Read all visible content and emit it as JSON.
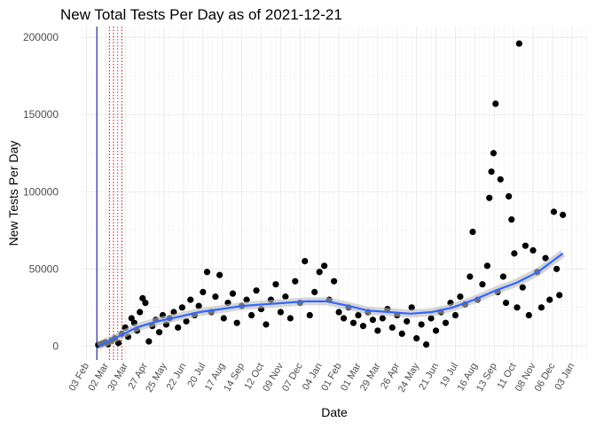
{
  "chart_data": {
    "type": "scatter",
    "title": "New Total Tests Per Day as of 2021-12-21",
    "xlabel": "Date",
    "ylabel": "New Tests Per Day",
    "xlim": [
      "2020-01-27",
      "2022-01-25"
    ],
    "ylim": [
      -9000,
      207000
    ],
    "yticks": [
      0,
      50000,
      100000,
      150000,
      200000
    ],
    "xticks": [
      {
        "value": "2020-02-03",
        "label": "03 Feb"
      },
      {
        "value": "2020-03-02",
        "label": "02 Mar"
      },
      {
        "value": "2020-03-30",
        "label": "30 Mar"
      },
      {
        "value": "2020-04-27",
        "label": "27 Apr"
      },
      {
        "value": "2020-05-25",
        "label": "25 May"
      },
      {
        "value": "2020-06-22",
        "label": "22 Jun"
      },
      {
        "value": "2020-07-20",
        "label": "20 Jul"
      },
      {
        "value": "2020-08-17",
        "label": "17 Aug"
      },
      {
        "value": "2020-09-14",
        "label": "14 Sep"
      },
      {
        "value": "2020-10-12",
        "label": "12 Oct"
      },
      {
        "value": "2020-11-09",
        "label": "09 Nov"
      },
      {
        "value": "2020-12-07",
        "label": "07 Dec"
      },
      {
        "value": "2021-01-04",
        "label": "04 Jan"
      },
      {
        "value": "2021-02-01",
        "label": "01 Feb"
      },
      {
        "value": "2021-03-01",
        "label": "01 Mar"
      },
      {
        "value": "2021-03-29",
        "label": "29 Mar"
      },
      {
        "value": "2021-04-26",
        "label": "26 Apr"
      },
      {
        "value": "2021-05-24",
        "label": "24 May"
      },
      {
        "value": "2021-06-21",
        "label": "21 Jun"
      },
      {
        "value": "2021-07-19",
        "label": "19 Jul"
      },
      {
        "value": "2021-08-16",
        "label": "16 Aug"
      },
      {
        "value": "2021-09-13",
        "label": "13 Sep"
      },
      {
        "value": "2021-10-11",
        "label": "11 Oct"
      },
      {
        "value": "2021-11-08",
        "label": "08 Nov"
      },
      {
        "value": "2021-12-06",
        "label": "06 Dec"
      },
      {
        "value": "2022-01-03",
        "label": "03 Jan"
      }
    ],
    "grid": true,
    "points": {
      "color": "#000000",
      "x": [
        "2020-02-20",
        "2020-02-25",
        "2020-03-01",
        "2020-03-05",
        "2020-03-10",
        "2020-03-15",
        "2020-03-20",
        "2020-03-25",
        "2020-03-30",
        "2020-04-03",
        "2020-04-08",
        "2020-04-12",
        "2020-04-16",
        "2020-04-20",
        "2020-04-24",
        "2020-04-28",
        "2020-05-03",
        "2020-05-08",
        "2020-05-13",
        "2020-05-18",
        "2020-05-23",
        "2020-05-28",
        "2020-06-02",
        "2020-06-08",
        "2020-06-14",
        "2020-06-20",
        "2020-06-26",
        "2020-07-02",
        "2020-07-08",
        "2020-07-14",
        "2020-07-20",
        "2020-07-26",
        "2020-08-01",
        "2020-08-07",
        "2020-08-13",
        "2020-08-19",
        "2020-08-25",
        "2020-09-01",
        "2020-09-07",
        "2020-09-14",
        "2020-09-21",
        "2020-09-28",
        "2020-10-05",
        "2020-10-12",
        "2020-10-19",
        "2020-10-26",
        "2020-11-02",
        "2020-11-09",
        "2020-11-16",
        "2020-11-23",
        "2020-11-30",
        "2020-12-07",
        "2020-12-14",
        "2020-12-21",
        "2020-12-28",
        "2021-01-04",
        "2021-01-11",
        "2021-01-18",
        "2021-01-25",
        "2021-02-01",
        "2021-02-08",
        "2021-02-15",
        "2021-02-22",
        "2021-03-01",
        "2021-03-08",
        "2021-03-15",
        "2021-03-22",
        "2021-03-29",
        "2021-04-05",
        "2021-04-12",
        "2021-04-19",
        "2021-04-26",
        "2021-05-03",
        "2021-05-10",
        "2021-05-17",
        "2021-05-24",
        "2021-05-31",
        "2021-06-07",
        "2021-06-14",
        "2021-06-21",
        "2021-06-28",
        "2021-07-05",
        "2021-07-12",
        "2021-07-19",
        "2021-07-26",
        "2021-08-02",
        "2021-08-09",
        "2021-08-13",
        "2021-08-20",
        "2021-08-27",
        "2021-09-03",
        "2021-09-06",
        "2021-09-09",
        "2021-09-12",
        "2021-09-15",
        "2021-09-18",
        "2021-09-22",
        "2021-09-26",
        "2021-09-30",
        "2021-10-04",
        "2021-10-08",
        "2021-10-12",
        "2021-10-16",
        "2021-10-19",
        "2021-10-24",
        "2021-10-28",
        "2021-11-02",
        "2021-11-08",
        "2021-11-14",
        "2021-11-20",
        "2021-11-26",
        "2021-12-02",
        "2021-12-08",
        "2021-12-12",
        "2021-12-16",
        "2021-12-21"
      ],
      "values": [
        800,
        1500,
        2500,
        1200,
        3500,
        5000,
        2000,
        8000,
        12000,
        6000,
        18000,
        15000,
        10000,
        22000,
        31000,
        28000,
        3000,
        13000,
        17000,
        9000,
        20000,
        14000,
        18000,
        22000,
        12000,
        25000,
        16000,
        30000,
        20000,
        26000,
        35000,
        48000,
        22000,
        32000,
        46000,
        18000,
        28000,
        34000,
        15000,
        26000,
        30000,
        20000,
        36000,
        24000,
        14000,
        30000,
        40000,
        22000,
        32000,
        18000,
        42000,
        28000,
        55000,
        20000,
        35000,
        48000,
        52000,
        30000,
        42000,
        22000,
        18000,
        25000,
        15000,
        20000,
        13000,
        22000,
        17000,
        10000,
        18000,
        24000,
        12000,
        20000,
        8000,
        16000,
        25000,
        5000,
        14000,
        1000,
        18000,
        10000,
        22000,
        15000,
        28000,
        20000,
        32000,
        27000,
        45000,
        74000,
        30000,
        40000,
        52000,
        96000,
        113000,
        125000,
        157000,
        35000,
        108000,
        45000,
        28000,
        97000,
        82000,
        60000,
        25000,
        196000,
        38000,
        65000,
        20000,
        62000,
        48000,
        25000,
        57000,
        30000,
        87000,
        50000,
        33000,
        85000
      ]
    },
    "smooth": {
      "color": "#3366ff",
      "x": [
        "2020-02-20",
        "2020-03-15",
        "2020-04-15",
        "2020-05-15",
        "2020-06-15",
        "2020-07-15",
        "2020-08-15",
        "2020-09-15",
        "2020-10-15",
        "2020-11-15",
        "2020-12-15",
        "2021-01-15",
        "2021-02-15",
        "2021-03-15",
        "2021-04-15",
        "2021-05-15",
        "2021-06-15",
        "2021-07-15",
        "2021-08-15",
        "2021-09-15",
        "2021-10-15",
        "2021-11-15",
        "2021-12-21"
      ],
      "values": [
        0,
        5000,
        12000,
        16000,
        19000,
        22000,
        24000,
        26000,
        27000,
        28000,
        29000,
        29000,
        26000,
        23000,
        22000,
        21000,
        22000,
        25000,
        30000,
        36000,
        41000,
        48000,
        60000
      ]
    },
    "vlines": [
      {
        "x": "2020-02-18",
        "color": "#00008b",
        "dash": false
      },
      {
        "x": "2020-03-07",
        "color": "#cc0000",
        "dash": true
      },
      {
        "x": "2020-03-13",
        "color": "#cc0000",
        "dash": true
      },
      {
        "x": "2020-03-19",
        "color": "#9933cc",
        "dash": true
      },
      {
        "x": "2020-03-25",
        "color": "#cc0000",
        "dash": true
      }
    ]
  }
}
